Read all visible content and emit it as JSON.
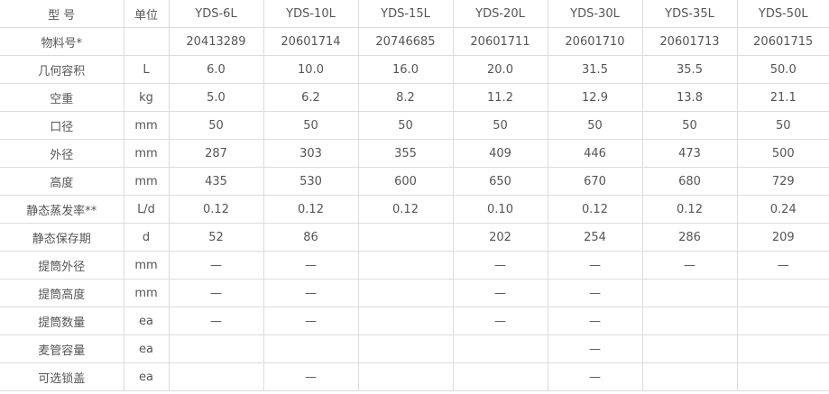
{
  "table": {
    "rows": [
      [
        "型 号",
        "单位",
        "YDS-6L",
        "YDS-10L",
        "YDS-15L",
        "YDS-20L",
        "YDS-30L",
        "YDS-35L",
        "YDS-50L"
      ],
      [
        "物料号*",
        null,
        "20413289",
        "20601714",
        "20746685",
        "20601711",
        "20601710",
        "20601713",
        "20601715"
      ],
      [
        "几何容积",
        "L",
        "6.0",
        "10.0",
        "16.0",
        "20.0",
        "31.5",
        "35.5",
        "50.0"
      ],
      [
        "空重",
        "kg",
        "5.0",
        "6.2",
        "8.2",
        "11.2",
        "12.9",
        "13.8",
        "21.1"
      ],
      [
        "口径",
        "mm",
        "50",
        "50",
        "50",
        "50",
        "50",
        "50",
        "50"
      ],
      [
        "外径",
        "mm",
        "287",
        "303",
        "355",
        "409",
        "446",
        "473",
        "500"
      ],
      [
        "高度",
        "mm",
        "435",
        "530",
        "600",
        "650",
        "670",
        "680",
        "729"
      ],
      [
        "静态蒸发率**",
        "L/d",
        "0.12",
        "0.12",
        "0.12",
        "0.10",
        "0.12",
        "0.12",
        "0.24"
      ],
      [
        "静态保存期",
        "d",
        "52",
        "86",
        null,
        "202",
        "254",
        "286",
        "209"
      ],
      [
        "提筒外径",
        "mm",
        "—",
        "—",
        null,
        "—",
        "—",
        "—",
        "—"
      ],
      [
        "提筒高度",
        "mm",
        "—",
        "—",
        null,
        "—",
        "—",
        null,
        null
      ],
      [
        "提筒数量",
        "ea",
        "—",
        "—",
        null,
        "—",
        "—",
        null,
        null
      ],
      [
        "麦管容量",
        "ea",
        null,
        null,
        null,
        null,
        "—",
        null,
        null
      ],
      [
        "可选锁盖",
        "ea",
        null,
        "—",
        null,
        null,
        "—",
        null,
        null
      ]
    ]
  }
}
